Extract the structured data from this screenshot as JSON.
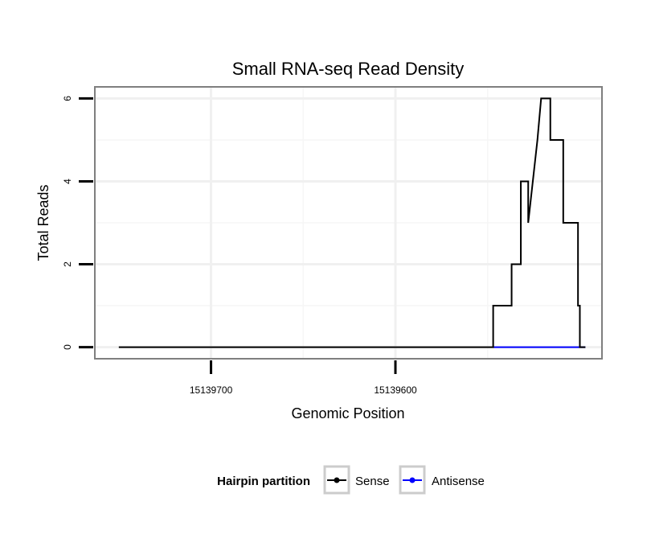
{
  "chart_data": {
    "type": "line",
    "title": "Small RNA-seq Read Density",
    "xlabel": "Genomic Position",
    "ylabel": "Total Reads",
    "x_reversed": true,
    "xlim": [
      15139763,
      15139488
    ],
    "ylim": [
      -0.28,
      6.28
    ],
    "x_ticks": [
      15139700,
      15139600
    ],
    "x_tick_labels": [
      "15139700",
      "15139600"
    ],
    "y_ticks": [
      0,
      2,
      4,
      6
    ],
    "y_tick_labels": [
      "0",
      "2",
      "4",
      "6"
    ],
    "x_minor_gridlines": [
      15139650,
      15139550
    ],
    "y_minor_gridlines": [
      1,
      3,
      5
    ],
    "grid": true,
    "legend": {
      "title": "Hairpin partition",
      "position": "bottom",
      "entries": [
        "Sense",
        "Antisense"
      ]
    },
    "series": [
      {
        "name": "Sense",
        "color": "#000000",
        "x": [
          15139750,
          15139547,
          15139547,
          15139537,
          15139537,
          15139532,
          15139532,
          15139528,
          15139528,
          15139523,
          15139523,
          15139521,
          15139521,
          15139519,
          15139519,
          15139516,
          15139516,
          15139509,
          15139509,
          15139507,
          15139507,
          15139501,
          15139501,
          15139500,
          15139500,
          15139497
        ],
        "y": [
          0,
          0,
          1,
          1,
          2,
          2,
          4,
          4,
          3,
          5,
          5,
          6,
          6,
          6,
          6,
          6,
          5,
          5,
          3,
          3,
          3,
          3,
          1,
          1,
          0,
          0
        ]
      },
      {
        "name": "Antisense",
        "color": "#0000ff",
        "x": [
          15139547,
          15139497
        ],
        "y": [
          0,
          0
        ]
      }
    ]
  }
}
